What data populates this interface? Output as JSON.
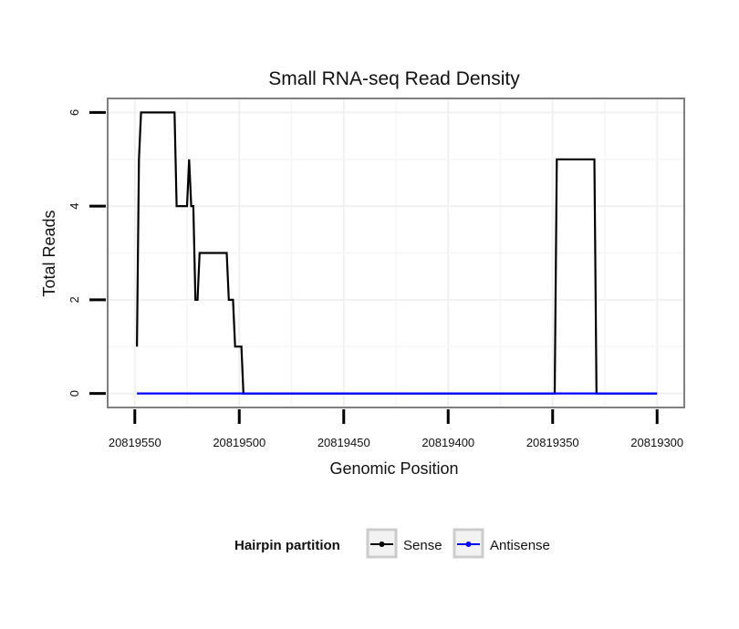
{
  "chart_data": {
    "type": "line",
    "title": "Small RNA-seq Read Density",
    "xlabel": "Genomic Position",
    "ylabel": "Total Reads",
    "xlim": [
      20819563,
      20819287
    ],
    "ylim": [
      -0.3,
      6.3
    ],
    "x_reversed": true,
    "x_ticks": [
      20819550,
      20819500,
      20819450,
      20819400,
      20819350,
      20819300
    ],
    "x_tick_labels": [
      "20819550",
      "20819500",
      "20819450",
      "20819400",
      "20819350",
      "20819300"
    ],
    "y_ticks": [
      0,
      2,
      4,
      6
    ],
    "y_tick_labels": [
      "0",
      "2",
      "4",
      "6"
    ],
    "grid": true,
    "legend": {
      "title": "Hairpin partition",
      "position": "bottom",
      "entries": [
        {
          "label": "Sense",
          "color": "#000000"
        },
        {
          "label": "Antisense",
          "color": "#0000ff"
        }
      ]
    },
    "series": [
      {
        "name": "Sense",
        "color": "#000000",
        "x": [
          20819549,
          20819548,
          20819547,
          20819531,
          20819530,
          20819525,
          20819524,
          20819523,
          20819522,
          20819521,
          20819520,
          20819519,
          20819506,
          20819505,
          20819503,
          20819502,
          20819499,
          20819498,
          20819349,
          20819348,
          20819330,
          20819329,
          20819300
        ],
        "values": [
          1,
          5,
          6,
          6,
          4,
          4,
          5,
          4,
          4,
          2,
          2,
          3,
          3,
          2,
          2,
          1,
          1,
          0,
          0,
          5,
          5,
          0,
          0
        ]
      },
      {
        "name": "Antisense",
        "color": "#0000ff",
        "x": [
          20819549,
          20819300
        ],
        "values": [
          0,
          0
        ]
      }
    ]
  }
}
